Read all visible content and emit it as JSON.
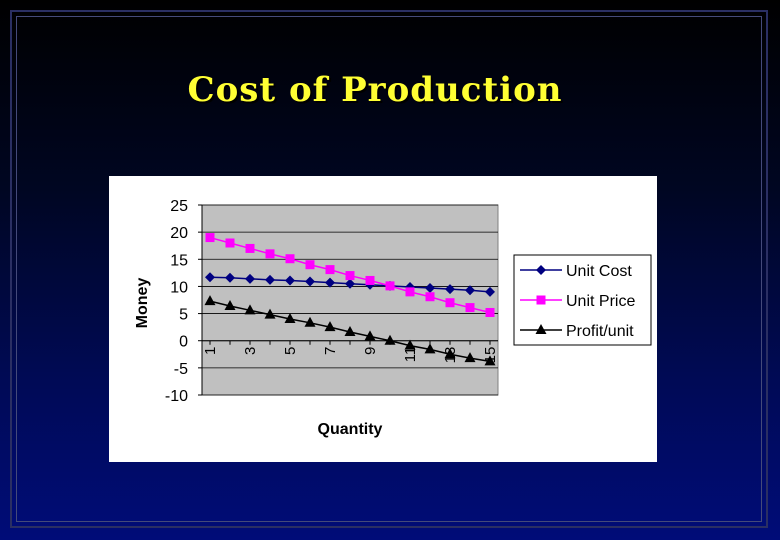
{
  "slide": {
    "title": "Cost of Production"
  },
  "chart_data": {
    "type": "line",
    "title": "",
    "xlabel": "Quantity",
    "ylabel": "Money",
    "ylim": [
      -10,
      25
    ],
    "yticks": [
      25,
      20,
      15,
      10,
      5,
      0,
      -5,
      -10
    ],
    "x": [
      1,
      2,
      3,
      4,
      5,
      6,
      7,
      8,
      9,
      10,
      11,
      12,
      13,
      14,
      15
    ],
    "xtick_labels": [
      "1",
      "3",
      "5",
      "7",
      "9",
      "11",
      "13",
      "15"
    ],
    "xtick_values": [
      1,
      3,
      5,
      7,
      9,
      11,
      13,
      15
    ],
    "grid": true,
    "legend_position": "right",
    "plot_background": "#c0c0c0",
    "series": [
      {
        "name": "Unit Cost",
        "color": "#000080",
        "marker": "diamond",
        "values": [
          11.7,
          11.6,
          11.4,
          11.2,
          11.1,
          10.9,
          10.7,
          10.5,
          10.3,
          10.1,
          9.9,
          9.7,
          9.5,
          9.3,
          9.0
        ]
      },
      {
        "name": "Unit Price",
        "color": "#ff00ff",
        "marker": "square",
        "values": [
          19.0,
          18.0,
          17.0,
          16.0,
          15.1,
          14.0,
          13.1,
          12.0,
          11.1,
          10.1,
          9.0,
          8.1,
          7.0,
          6.1,
          5.2
        ]
      },
      {
        "name": "Profit/unit",
        "color": "#000000",
        "marker": "triangle",
        "values": [
          7.3,
          6.4,
          5.6,
          4.8,
          4.0,
          3.3,
          2.5,
          1.6,
          0.8,
          0.0,
          -0.9,
          -1.6,
          -2.5,
          -3.2,
          -3.8
        ]
      }
    ]
  }
}
